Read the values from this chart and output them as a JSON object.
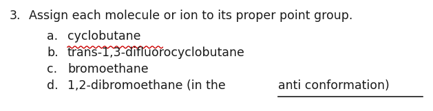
{
  "title_number": "3.",
  "title_text": "Assign each molecule or ion to its proper point group.",
  "items": [
    {
      "label": "a.",
      "text": "cyclobutane",
      "underline_wavy": true
    },
    {
      "label": "b.",
      "text": "trans-1,3-difluorocyclobutane",
      "underline_wavy": false
    },
    {
      "label": "c.",
      "text": "bromoethane",
      "underline_wavy": false
    },
    {
      "label": "d.",
      "text_parts": [
        {
          "text": "1,2-dibromoethane (in the ",
          "underline": false
        },
        {
          "text": "anti conformation)",
          "underline": true
        }
      ]
    }
  ],
  "font_family": "DejaVu Sans",
  "title_fontsize": 12.5,
  "item_fontsize": 12.5,
  "background_color": "#ffffff",
  "text_color": "#1a1a1a",
  "wavy_color": "#cc0000"
}
